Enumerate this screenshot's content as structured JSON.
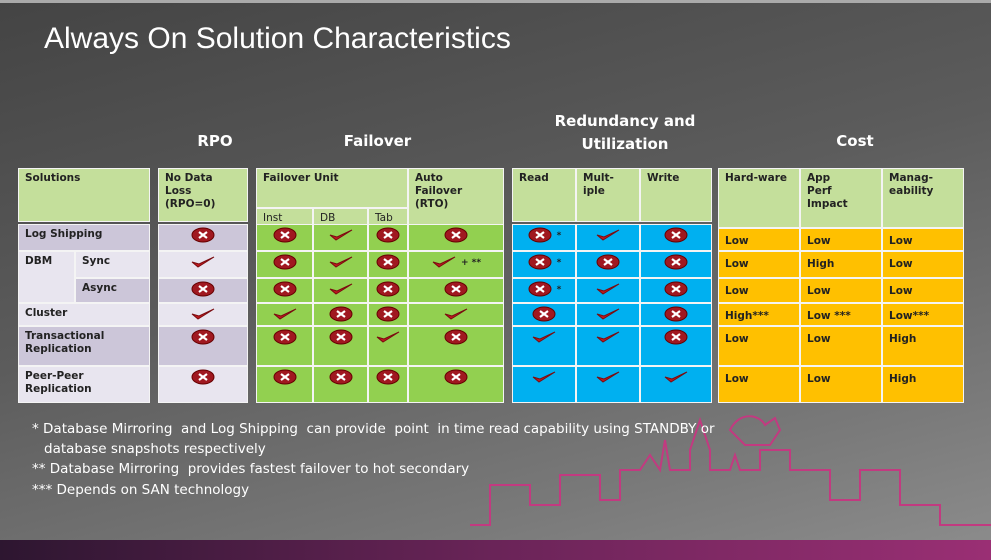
{
  "title": "Always On Solution Characteristics",
  "groups": {
    "rpo": "RPO",
    "failover": "Failover",
    "redundancy": [
      "Redundancy and",
      "Utilization"
    ],
    "cost": "Cost"
  },
  "headers": {
    "solutions": "Solutions",
    "rpo": [
      "No Data Loss",
      "(RPO=0)"
    ],
    "failover_unit": "Failover Unit",
    "inst": "Inst",
    "db": "DB",
    "tab": "Tab",
    "auto_failover": [
      "Auto",
      "Failover",
      "(RTO)"
    ],
    "read": "Read",
    "multiple": [
      "Mult-",
      "iple"
    ],
    "write": "Write",
    "hardware": "Hard-ware",
    "app_perf": [
      "App",
      "Perf",
      "Impact"
    ],
    "manageability": [
      "Manag-",
      "eability"
    ]
  },
  "rows": [
    {
      "solution": "Log Shipping",
      "rpo": false,
      "inst": false,
      "db": true,
      "tab": false,
      "auto": false,
      "read": false,
      "read_note": "*",
      "multiple": true,
      "write": false,
      "hardware": "Low",
      "app_perf": "Low",
      "manageability": "Low"
    },
    {
      "solution": "DBM",
      "sub": "Sync",
      "rpo": true,
      "inst": false,
      "db": true,
      "tab": false,
      "auto": true,
      "auto_note": "+ **",
      "read": false,
      "read_note": "*",
      "multiple": false,
      "write": false,
      "hardware": "Low",
      "app_perf": "High",
      "manageability": "Low"
    },
    {
      "sub": "Async",
      "rpo": false,
      "inst": false,
      "db": true,
      "tab": false,
      "auto": false,
      "read": false,
      "read_note": "*",
      "multiple": true,
      "write": false,
      "hardware": "Low",
      "app_perf": "Low",
      "manageability": "Low"
    },
    {
      "solution": "Cluster",
      "rpo": true,
      "inst": true,
      "db": false,
      "tab": false,
      "auto": true,
      "read": false,
      "multiple": true,
      "write": false,
      "hardware": "High***",
      "app_perf": "Low ***",
      "manageability": "Low***"
    },
    {
      "solution": "Transactional Replication",
      "rpo": false,
      "inst": false,
      "db": false,
      "tab": true,
      "auto": false,
      "read": true,
      "multiple": true,
      "write": false,
      "hardware": "Low",
      "app_perf": "Low",
      "manageability": "High"
    },
    {
      "solution": "Peer-Peer Replication",
      "rpo": false,
      "inst": false,
      "db": false,
      "tab": false,
      "auto": false,
      "read": true,
      "multiple": true,
      "write": true,
      "hardware": "Low",
      "app_perf": "Low",
      "manageability": "High"
    }
  ],
  "footnotes": [
    "* Database Mirroring  and Log Shipping  can provide  point  in time read capability using STANDBY or",
    "database snapshots respectively",
    "** Database Mirroring  provides fastest failover to hot secondary",
    "*** Depends on SAN technology"
  ]
}
